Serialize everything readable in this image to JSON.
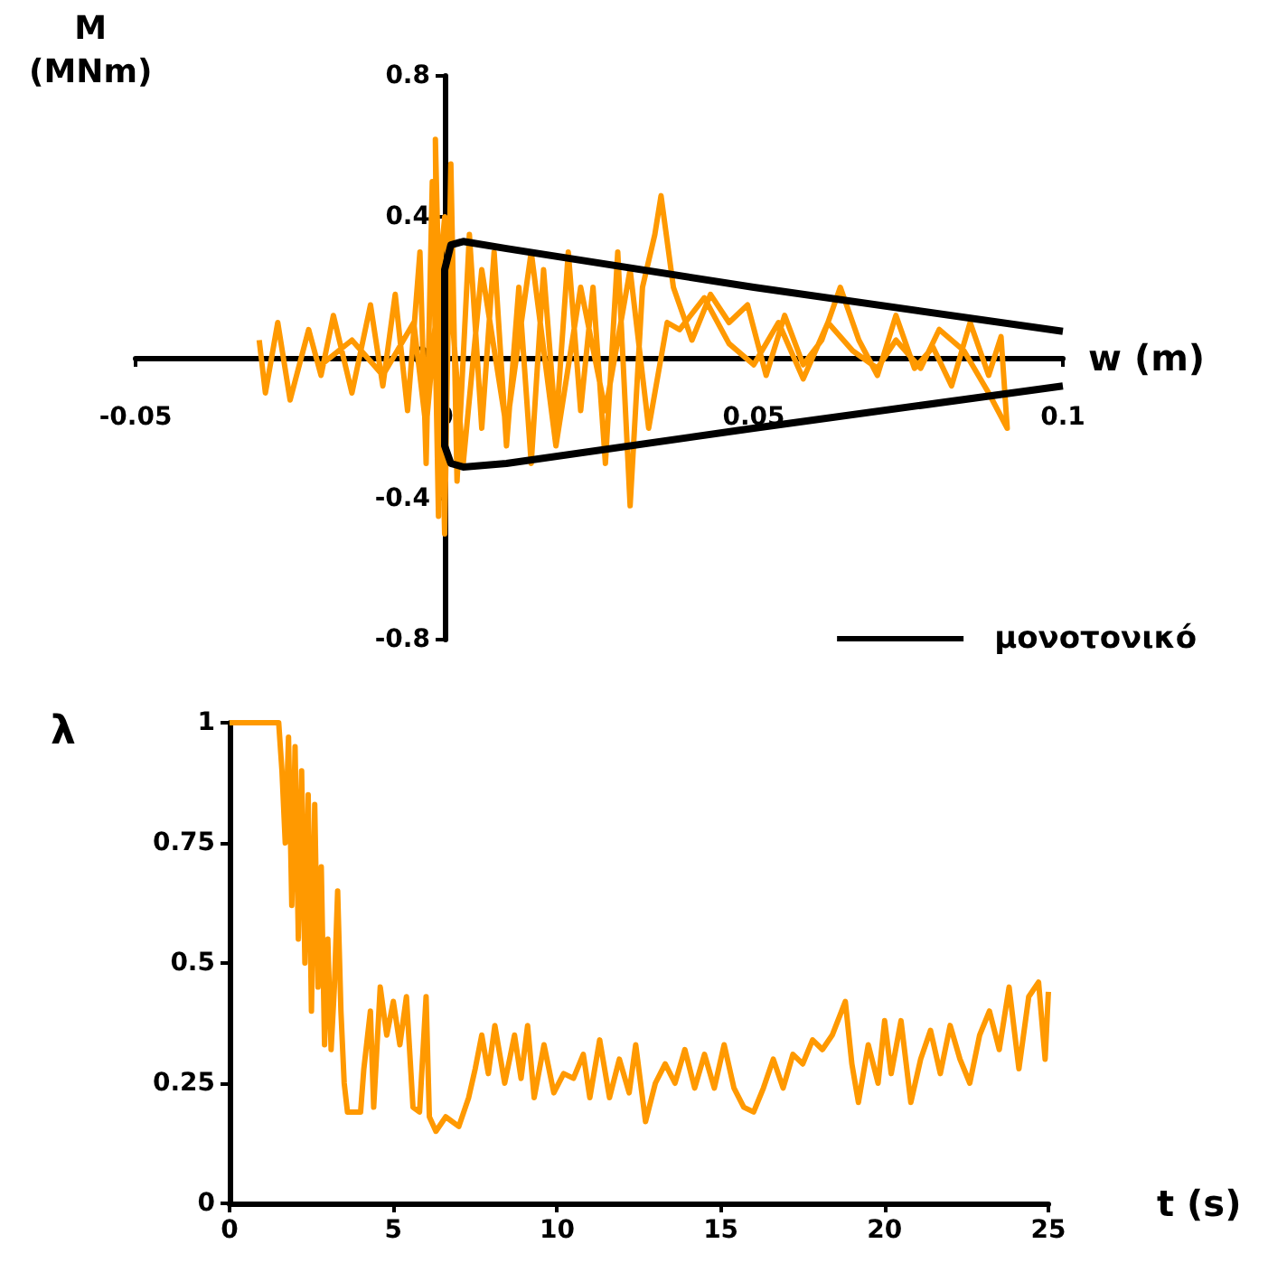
{
  "chart_data": [
    {
      "type": "line",
      "xlabel": "w (m)",
      "ylabel": "M (MNm)",
      "xlim": [
        -0.05,
        0.1
      ],
      "xticks": [
        -0.05,
        0,
        0.05,
        0.1
      ],
      "ylim": [
        -0.8,
        0.8
      ],
      "yticks": [
        -0.8,
        -0.4,
        0,
        0.4,
        0.8
      ],
      "grid": false,
      "legend": "bottom right",
      "series": [
        {
          "color": "#ff9900",
          "x": [
            -0.03,
            -0.029,
            -0.027,
            -0.025,
            -0.022,
            -0.02,
            -0.018,
            -0.015,
            -0.012,
            -0.01,
            -0.008,
            -0.006,
            -0.004,
            -0.003,
            -0.002,
            -0.001,
            -0.0015,
            0.0,
            0.001,
            0.002,
            0.004,
            0.006,
            0.008,
            0.01,
            0.012,
            0.014,
            0.016,
            0.018,
            0.02,
            0.022,
            0.024,
            0.026,
            0.028,
            0.03,
            0.032,
            0.034,
            0.035,
            0.037,
            0.04,
            0.043,
            0.046,
            0.049,
            0.052,
            0.055,
            0.058,
            0.061,
            0.064,
            0.067,
            0.07,
            0.073,
            0.076,
            0.079,
            0.082,
            0.085,
            0.088,
            0.09,
            0.091,
            0.088,
            0.084,
            0.08,
            0.077,
            0.073,
            0.07,
            0.066,
            0.062,
            0.058,
            0.054,
            0.05,
            0.046,
            0.042,
            0.038,
            0.036,
            0.033,
            0.03,
            0.026,
            0.022,
            0.018,
            0.014,
            0.01,
            0.006,
            0.003,
            0.0,
            -0.003,
            -0.005,
            -0.01,
            -0.015,
            -0.02
          ],
          "values": [
            0.05,
            -0.1,
            0.1,
            -0.12,
            0.08,
            -0.05,
            0.12,
            -0.1,
            0.15,
            -0.08,
            0.18,
            -0.15,
            0.3,
            -0.3,
            0.5,
            -0.45,
            0.62,
            -0.5,
            0.55,
            -0.35,
            0.35,
            -0.2,
            0.3,
            -0.25,
            0.2,
            -0.3,
            0.25,
            -0.2,
            0.3,
            -0.15,
            0.2,
            -0.3,
            0.3,
            -0.42,
            0.2,
            0.35,
            0.46,
            0.2,
            0.05,
            0.18,
            0.1,
            0.15,
            -0.05,
            0.12,
            -0.02,
            0.05,
            0.2,
            0.05,
            -0.05,
            0.12,
            -0.03,
            0.03,
            -0.08,
            0.1,
            -0.05,
            0.06,
            -0.2,
            -0.1,
            0.02,
            0.08,
            -0.03,
            0.05,
            -0.03,
            0.02,
            0.1,
            -0.06,
            0.1,
            -0.02,
            0.04,
            0.17,
            0.08,
            0.1,
            -0.2,
            0.25,
            -0.15,
            0.2,
            -0.25,
            0.3,
            -0.2,
            0.25,
            -0.3,
            0.4,
            -0.2,
            0.1,
            -0.05,
            0.05,
            -0.02
          ]
        },
        {
          "name": "μονοτονικό",
          "color": "#000000",
          "x": [
            0.1,
            0.05,
            0.01,
            0.003,
            0.001,
            0.0,
            0.0,
            0.001,
            0.003,
            0.01,
            0.05,
            0.1
          ],
          "values": [
            0.075,
            0.2,
            0.31,
            0.33,
            0.32,
            0.25,
            -0.25,
            -0.3,
            -0.31,
            -0.3,
            -0.2,
            -0.08
          ]
        }
      ]
    },
    {
      "type": "line",
      "xlabel": "t (s)",
      "ylabel": "λ",
      "xlim": [
        0,
        25
      ],
      "xticks": [
        0,
        5,
        10,
        15,
        20,
        25
      ],
      "ylim": [
        0,
        1
      ],
      "yticks": [
        0,
        0.25,
        0.5,
        0.75,
        1
      ],
      "grid": false,
      "series": [
        {
          "color": "#ff9900",
          "x": [
            0,
            1.5,
            1.6,
            1.7,
            1.8,
            1.9,
            2.0,
            2.1,
            2.2,
            2.3,
            2.4,
            2.5,
            2.6,
            2.7,
            2.8,
            2.9,
            3.0,
            3.1,
            3.2,
            3.3,
            3.4,
            3.5,
            3.6,
            4.0,
            4.1,
            4.3,
            4.4,
            4.6,
            4.8,
            5.0,
            5.2,
            5.4,
            5.6,
            5.8,
            6.0,
            6.1,
            6.3,
            6.6,
            7.0,
            7.3,
            7.5,
            7.7,
            7.9,
            8.1,
            8.4,
            8.7,
            8.9,
            9.1,
            9.3,
            9.6,
            9.9,
            10.2,
            10.5,
            10.8,
            11.0,
            11.3,
            11.6,
            11.9,
            12.2,
            12.4,
            12.7,
            13.0,
            13.3,
            13.6,
            13.9,
            14.2,
            14.5,
            14.8,
            15.1,
            15.4,
            15.7,
            16.0,
            16.3,
            16.6,
            16.9,
            17.2,
            17.5,
            17.8,
            18.1,
            18.4,
            18.8,
            19.0,
            19.2,
            19.5,
            19.8,
            20.0,
            20.2,
            20.5,
            20.8,
            21.1,
            21.4,
            21.7,
            22.0,
            22.3,
            22.6,
            22.9,
            23.2,
            23.5,
            23.8,
            24.1,
            24.4,
            24.7,
            24.9,
            25
          ],
          "values": [
            1,
            1,
            0.9,
            0.75,
            0.97,
            0.62,
            0.95,
            0.55,
            0.9,
            0.5,
            0.85,
            0.4,
            0.83,
            0.45,
            0.7,
            0.33,
            0.55,
            0.32,
            0.45,
            0.65,
            0.4,
            0.25,
            0.19,
            0.19,
            0.28,
            0.4,
            0.2,
            0.45,
            0.35,
            0.42,
            0.33,
            0.43,
            0.2,
            0.19,
            0.43,
            0.18,
            0.15,
            0.18,
            0.16,
            0.22,
            0.28,
            0.35,
            0.27,
            0.37,
            0.25,
            0.35,
            0.26,
            0.37,
            0.22,
            0.33,
            0.23,
            0.27,
            0.26,
            0.31,
            0.22,
            0.34,
            0.22,
            0.3,
            0.23,
            0.33,
            0.17,
            0.25,
            0.29,
            0.25,
            0.32,
            0.24,
            0.31,
            0.24,
            0.33,
            0.24,
            0.2,
            0.19,
            0.24,
            0.3,
            0.24,
            0.31,
            0.29,
            0.34,
            0.32,
            0.35,
            0.42,
            0.29,
            0.21,
            0.33,
            0.25,
            0.38,
            0.27,
            0.38,
            0.21,
            0.3,
            0.36,
            0.27,
            0.37,
            0.3,
            0.25,
            0.35,
            0.4,
            0.32,
            0.45,
            0.28,
            0.43,
            0.46,
            0.3,
            0.44
          ]
        }
      ]
    }
  ]
}
